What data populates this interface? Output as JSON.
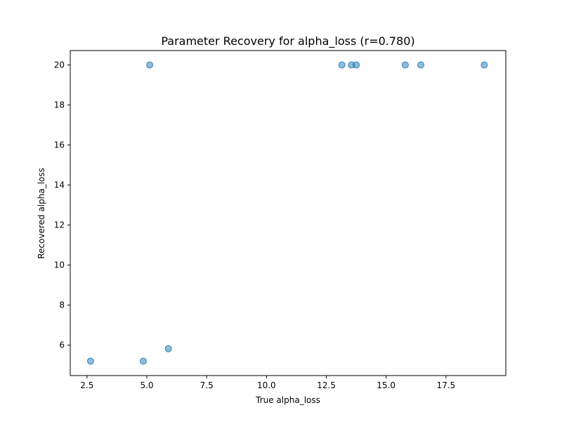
{
  "chart_data": {
    "type": "scatter",
    "title": "Parameter Recovery for alpha_loss (r=0.780)",
    "xlabel": "True alpha_loss",
    "ylabel": "Recovered alpha_loss",
    "xlim": [
      1.8,
      20.0
    ],
    "ylim": [
      4.48,
      20.72
    ],
    "xticks": [
      2.5,
      5.0,
      7.5,
      10.0,
      12.5,
      15.0,
      17.5
    ],
    "xtick_labels": [
      "2.5",
      "5.0",
      "7.5",
      "10.0",
      "12.5",
      "15.0",
      "17.5"
    ],
    "yticks": [
      6,
      8,
      10,
      12,
      14,
      16,
      18,
      20
    ],
    "ytick_labels": [
      "6",
      "8",
      "10",
      "12",
      "14",
      "16",
      "18",
      "20"
    ],
    "grid": false,
    "marker_color": "#1f77b4",
    "marker_alpha": 0.5,
    "points": [
      {
        "x": 2.65,
        "y": 5.2
      },
      {
        "x": 4.85,
        "y": 5.2
      },
      {
        "x": 5.9,
        "y": 5.82
      },
      {
        "x": 5.12,
        "y": 20.0
      },
      {
        "x": 13.15,
        "y": 20.0
      },
      {
        "x": 13.55,
        "y": 20.0
      },
      {
        "x": 13.75,
        "y": 20.0
      },
      {
        "x": 15.8,
        "y": 20.0
      },
      {
        "x": 16.45,
        "y": 20.0
      },
      {
        "x": 19.1,
        "y": 20.0
      }
    ]
  }
}
